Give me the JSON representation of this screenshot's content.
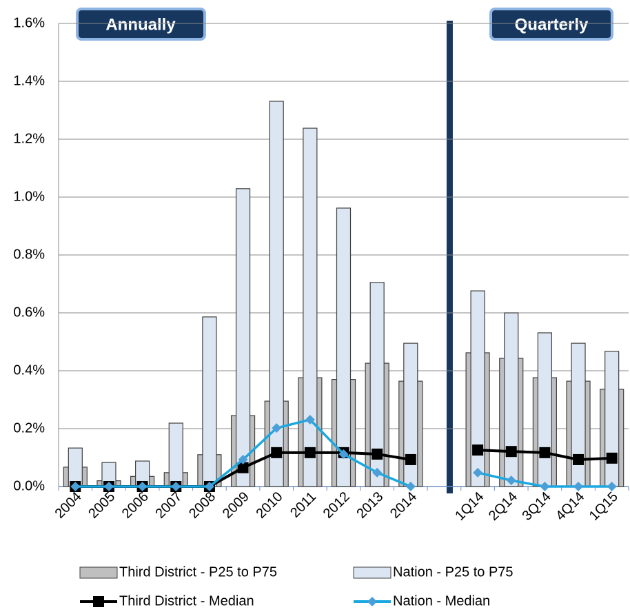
{
  "chart_data": {
    "type": "bar",
    "annotations": [
      "Annually",
      "Quarterly"
    ],
    "categories": [
      "2004",
      "2005",
      "2006",
      "2007",
      "2008",
      "2009",
      "2010",
      "2011",
      "2012",
      "2013",
      "2014",
      null,
      "1Q14",
      "2Q14",
      "3Q14",
      "4Q14",
      "1Q15"
    ],
    "series": [
      {
        "name": "Third District - P25 to P75",
        "type": "bar",
        "color": "#bfbfbf",
        "values": [
          0.067,
          0.02,
          0.035,
          0.048,
          0.11,
          0.245,
          0.295,
          0.376,
          0.37,
          0.426,
          0.364,
          null,
          0.462,
          0.443,
          0.376,
          0.364,
          0.336
        ]
      },
      {
        "name": "Nation - P25 to P75",
        "type": "bar",
        "color": "#dce6f2",
        "values": [
          0.133,
          0.083,
          0.088,
          0.219,
          0.586,
          1.029,
          1.331,
          1.238,
          0.962,
          0.705,
          0.495,
          null,
          0.676,
          0.6,
          0.531,
          0.495,
          0.467
        ]
      },
      {
        "name": "Third District - Median",
        "type": "line",
        "marker": "square",
        "color": "#000000",
        "values": [
          0,
          0,
          0,
          0,
          0,
          0.065,
          0.117,
          0.117,
          0.117,
          0.112,
          0.093,
          null,
          0.126,
          0.121,
          0.117,
          0.093,
          0.098
        ]
      },
      {
        "name": "Nation - Median",
        "type": "line",
        "marker": "diamond",
        "color": "#1ba8e0",
        "values": [
          0,
          0,
          0,
          0,
          0,
          0.093,
          0.202,
          0.231,
          0.112,
          0.048,
          0,
          null,
          0.048,
          0.021,
          0,
          0,
          0
        ]
      }
    ],
    "ylim": [
      0,
      1.6
    ],
    "yticks": [
      {
        "value": 0,
        "label": "0.0%"
      },
      {
        "value": 0.2,
        "label": "0.2%"
      },
      {
        "value": 0.4,
        "label": "0.4%"
      },
      {
        "value": 0.6,
        "label": "0.6%"
      },
      {
        "value": 0.8,
        "label": "0.8%"
      },
      {
        "value": 1.0,
        "label": "1.0%"
      },
      {
        "value": 1.2,
        "label": "1.2%"
      },
      {
        "value": 1.4,
        "label": "1.4%"
      },
      {
        "value": 1.6,
        "label": "1.6%"
      }
    ],
    "grid": true
  }
}
